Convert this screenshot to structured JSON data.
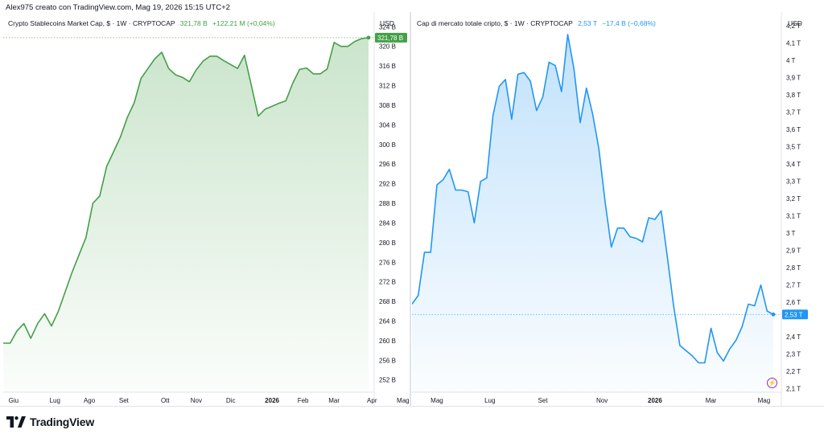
{
  "header": {
    "title": "Alex975 creato con TradingView.com, Mag 19, 2026 15:15 UTC+2"
  },
  "brand": {
    "name": "TradingView",
    "logo_icon": "tradingview-logo-icon"
  },
  "colors": {
    "green": "#43a047",
    "blue": "#2196f3",
    "grid": "#f0f3fa",
    "text": "#131722"
  },
  "chart_data": [
    {
      "type": "area",
      "legend": {
        "name": "Crypto Stablecoins Market Cap, $ · 1W · CRYPTOCAP",
        "value": "321,78 B",
        "change": "+122,21 M (+0,04%)"
      },
      "currency": "USD",
      "price_label": "321,78 B",
      "last_value": 321.78,
      "color": "#43a047",
      "ylim": [
        249.5,
        327
      ],
      "y_ticks": [
        {
          "v": 324,
          "label": "324 B"
        },
        {
          "v": 320,
          "label": "320 B"
        },
        {
          "v": 316,
          "label": "316 B"
        },
        {
          "v": 312,
          "label": "312 B"
        },
        {
          "v": 308,
          "label": "308 B"
        },
        {
          "v": 304,
          "label": "304 B"
        },
        {
          "v": 300,
          "label": "300 B"
        },
        {
          "v": 296,
          "label": "296 B"
        },
        {
          "v": 292,
          "label": "292 B"
        },
        {
          "v": 288,
          "label": "288 B"
        },
        {
          "v": 284,
          "label": "284 B"
        },
        {
          "v": 280,
          "label": "280 B"
        },
        {
          "v": 276,
          "label": "276 B"
        },
        {
          "v": 272,
          "label": "272 B"
        },
        {
          "v": 268,
          "label": "268 B"
        },
        {
          "v": 264,
          "label": "264 B"
        },
        {
          "v": 260,
          "label": "260 B"
        },
        {
          "v": 256,
          "label": "256 B"
        },
        {
          "v": 252,
          "label": "252 B"
        }
      ],
      "x_ticks": [
        {
          "i": 1.5,
          "label": "Giu"
        },
        {
          "i": 7.5,
          "label": "Lug"
        },
        {
          "i": 12.5,
          "label": "Ago"
        },
        {
          "i": 17.5,
          "label": "Set"
        },
        {
          "i": 23.5,
          "label": "Ott"
        },
        {
          "i": 28,
          "label": "Nov"
        },
        {
          "i": 33,
          "label": "Dic"
        },
        {
          "i": 39,
          "label": "2026",
          "bold": true
        },
        {
          "i": 43.5,
          "label": "Feb"
        },
        {
          "i": 48,
          "label": "Mar"
        },
        {
          "i": 53.5,
          "label": "Apr"
        },
        {
          "i": 58,
          "label": "Mag"
        }
      ],
      "values": [
        259.5,
        259.5,
        262,
        263.5,
        260.5,
        263.5,
        265.5,
        263,
        266,
        270,
        274,
        277.5,
        281,
        288,
        289.5,
        295.5,
        298.5,
        301.5,
        305.5,
        308.5,
        313.5,
        315.5,
        317.5,
        318.8,
        315.5,
        314.2,
        313.7,
        312.8,
        315.2,
        317,
        318,
        318,
        317.1,
        316.3,
        315.5,
        318.2,
        312,
        305.8,
        307.2,
        307.8,
        308.4,
        308.9,
        312.5,
        315.3,
        315.6,
        314.4,
        314.4,
        315.4,
        320.8,
        320,
        320,
        321,
        321.6,
        321.78
      ]
    },
    {
      "type": "area",
      "legend": {
        "name": "Cap di mercato totale cripto, $ · 1W · CRYPTOCAP",
        "value": "2,53 T",
        "change": "−17,4 B (−0,68%)"
      },
      "currency": "USD",
      "price_label": "2,53 T",
      "last_value": 2.53,
      "color": "#2196f3",
      "ylim": [
        2.08,
        4.28
      ],
      "y_ticks": [
        {
          "v": 4.2,
          "label": "4,2 T"
        },
        {
          "v": 4.1,
          "label": "4,1 T"
        },
        {
          "v": 4.0,
          "label": "4 T"
        },
        {
          "v": 3.9,
          "label": "3,9 T"
        },
        {
          "v": 3.8,
          "label": "3,8 T"
        },
        {
          "v": 3.7,
          "label": "3,7 T"
        },
        {
          "v": 3.6,
          "label": "3,6 T"
        },
        {
          "v": 3.5,
          "label": "3,5 T"
        },
        {
          "v": 3.4,
          "label": "3,4 T"
        },
        {
          "v": 3.3,
          "label": "3,3 T"
        },
        {
          "v": 3.2,
          "label": "3,2 T"
        },
        {
          "v": 3.1,
          "label": "3,1 T"
        },
        {
          "v": 3.0,
          "label": "3 T"
        },
        {
          "v": 2.9,
          "label": "2,9 T"
        },
        {
          "v": 2.8,
          "label": "2,8 T"
        },
        {
          "v": 2.7,
          "label": "2,7 T"
        },
        {
          "v": 2.6,
          "label": "2,6 T"
        },
        {
          "v": 2.4,
          "label": "2,4 T"
        },
        {
          "v": 2.3,
          "label": "2,3 T"
        },
        {
          "v": 2.2,
          "label": "2,2 T"
        },
        {
          "v": 2.1,
          "label": "2,1 T"
        }
      ],
      "x_ticks": [
        {
          "i": 4,
          "label": "Mag"
        },
        {
          "i": 12.5,
          "label": "Lug"
        },
        {
          "i": 21,
          "label": "Set"
        },
        {
          "i": 30.5,
          "label": "Nov"
        },
        {
          "i": 39,
          "label": "2026",
          "bold": true
        },
        {
          "i": 48,
          "label": "Mar"
        },
        {
          "i": 56.5,
          "label": "Mag"
        }
      ],
      "values": [
        2.59,
        2.64,
        2.89,
        2.89,
        3.28,
        3.31,
        3.37,
        3.25,
        3.25,
        3.24,
        3.06,
        3.3,
        3.32,
        3.68,
        3.85,
        3.89,
        3.66,
        3.92,
        3.93,
        3.88,
        3.71,
        3.79,
        3.99,
        3.97,
        3.82,
        4.15,
        3.95,
        3.64,
        3.84,
        3.69,
        3.49,
        3.18,
        2.92,
        3.03,
        3.03,
        2.98,
        2.97,
        2.95,
        3.09,
        3.08,
        3.13,
        2.86,
        2.58,
        2.35,
        2.32,
        2.29,
        2.25,
        2.25,
        2.45,
        2.31,
        2.26,
        2.33,
        2.38,
        2.46,
        2.59,
        2.58,
        2.7,
        2.55,
        2.53
      ]
    }
  ]
}
